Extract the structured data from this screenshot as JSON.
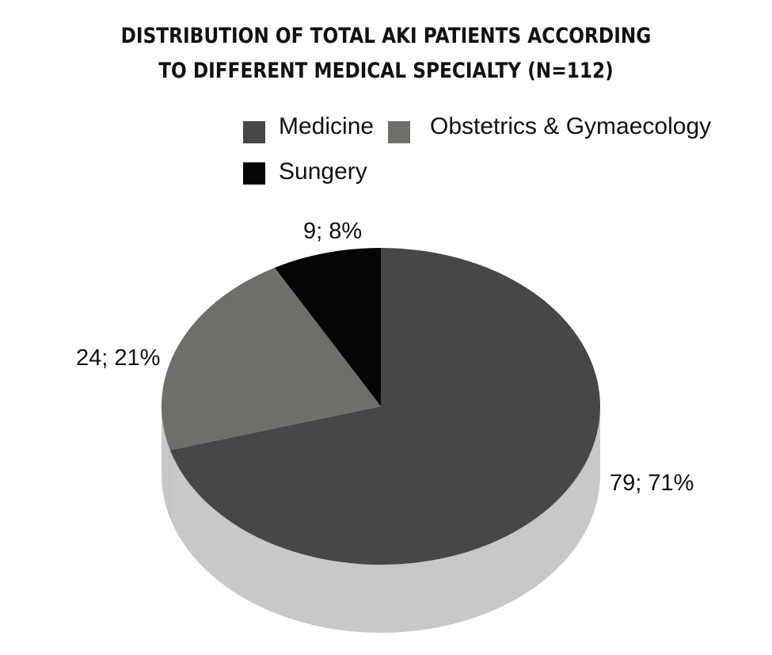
{
  "chart_data": {
    "type": "pie",
    "title_lines": [
      "DISTRIBUTION OF TOTAL AKI PATIENTS ACCORDING",
      "TO DIFFERENT MEDICAL SPECIALTY (N=112)"
    ],
    "slices": [
      {
        "name": "Medicine",
        "value": 79,
        "percent": 71,
        "label": "79; 71%",
        "color": "#474747"
      },
      {
        "name": "Obstetrics & Gymaecology",
        "value": 24,
        "percent": 21,
        "label": "24; 21%",
        "color": "#6e6e6b"
      },
      {
        "name": "Sungery",
        "value": 9,
        "percent": 8,
        "label": "9; 8%",
        "color": "#050505"
      }
    ],
    "side_color": "#c8c8c8",
    "legend_position": "top-right",
    "three_d": true
  }
}
